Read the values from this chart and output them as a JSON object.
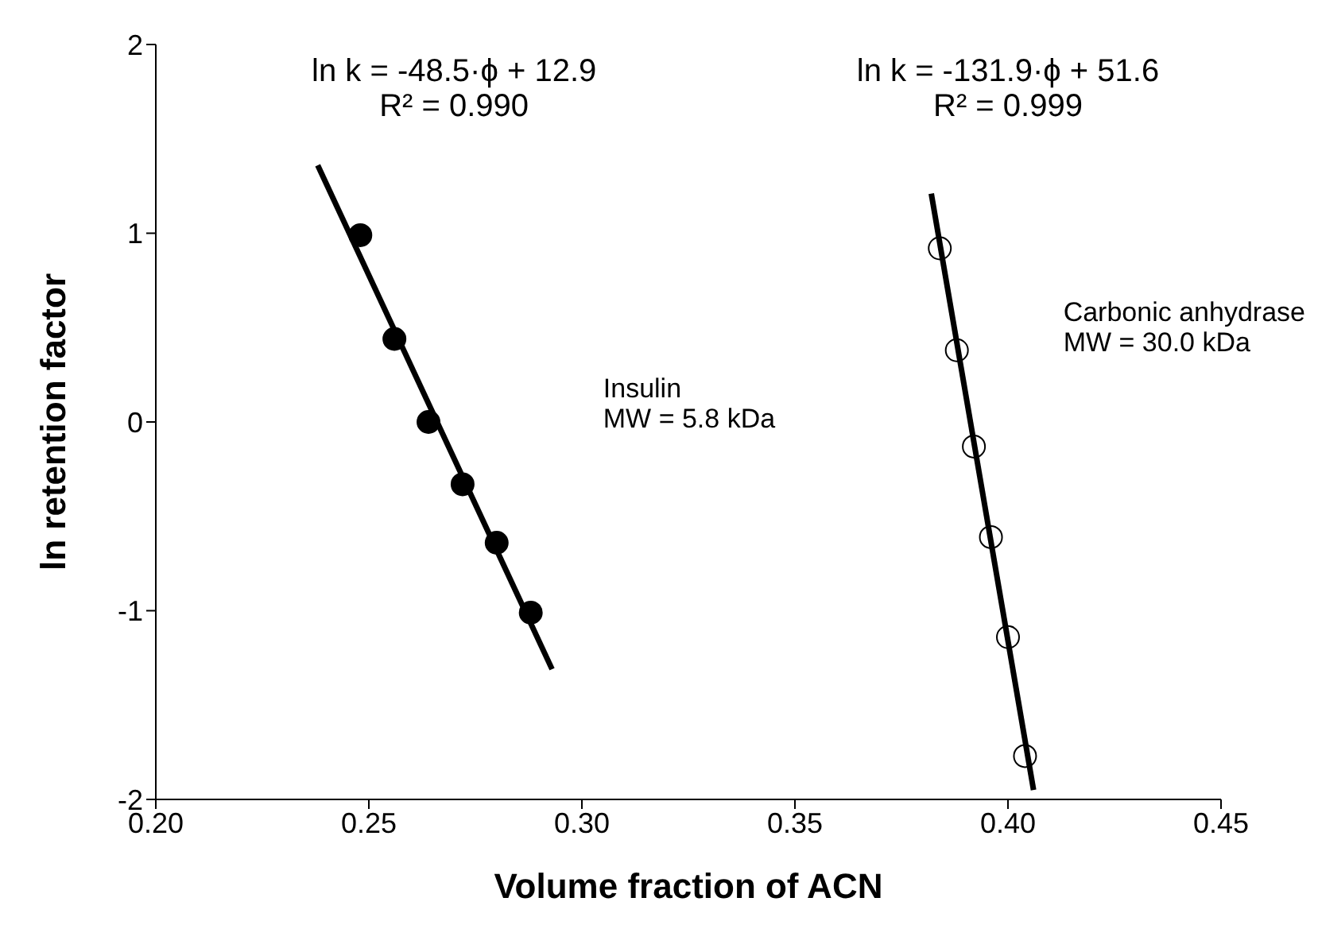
{
  "chart_data": {
    "type": "scatter",
    "xlabel": "Volume fraction of ACN",
    "ylabel": "ln retention factor",
    "xlim": [
      0.2,
      0.45
    ],
    "xticks": [
      {
        "value": 0.2,
        "label": "0.20"
      },
      {
        "value": 0.25,
        "label": "0.25"
      },
      {
        "value": 0.3,
        "label": "0.30"
      },
      {
        "value": 0.35,
        "label": "0.35"
      },
      {
        "value": 0.4,
        "label": "0.40"
      },
      {
        "value": 0.45,
        "label": "0.45"
      }
    ],
    "ylim": [
      -2,
      2
    ],
    "yticks": [
      -2,
      -1,
      0,
      1,
      2
    ],
    "series": [
      {
        "marker": "circle",
        "color": "#000000",
        "x": [
          0.248,
          0.256,
          0.264,
          0.272,
          0.28,
          0.288
        ],
        "values": [
          0.99,
          0.44,
          0.0,
          -0.33,
          -0.64,
          -1.01
        ]
      },
      {
        "marker": "circle",
        "color": "#000000",
        "x": [
          0.384,
          0.388,
          0.392,
          0.396,
          0.4,
          0.404
        ],
        "values": [
          0.92,
          0.38,
          -0.13,
          -0.61,
          -1.14,
          -1.77
        ]
      },
      {
        "type": "line",
        "marker": "none",
        "line_style": "solid",
        "color": "#000000",
        "x": [
          0.238,
          0.293
        ],
        "values": [
          1.36,
          -1.31
        ]
      },
      {
        "type": "line",
        "marker": "none",
        "line_style": "solid",
        "color": "#000000",
        "x": [
          0.382,
          0.406
        ],
        "values": [
          1.21,
          -1.95
        ]
      }
    ],
    "annotations": [
      "ln k = -48.5·ϕ + 12.9\nR² = 0.990",
      "ln k = -131.9·ϕ + 51.6\nR² = 0.999",
      "Insulin\nMW = 5.8 kDa",
      "Carbonic anhydrase\nMW = 30.0 kDa"
    ]
  }
}
